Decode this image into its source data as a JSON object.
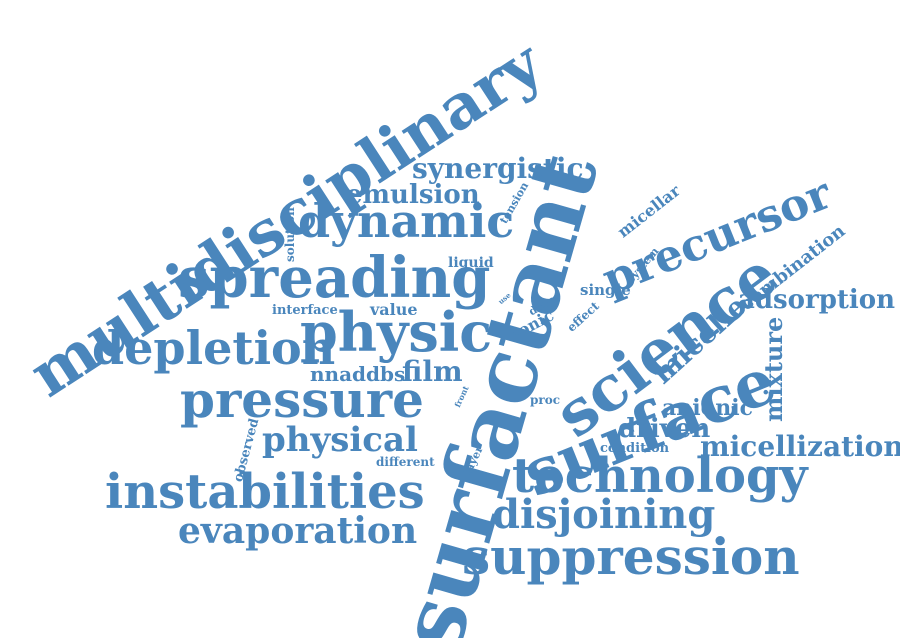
{
  "cloud": {
    "color": "#4a86bc",
    "background": "#ffffff",
    "words": [
      "multidisciplinary",
      "surfactant",
      "science",
      "surface",
      "spreading",
      "dynamic",
      "physic",
      "depletion",
      "pressure",
      "instabilities",
      "technology",
      "suppression",
      "disjoining",
      "evaporation",
      "precursor",
      "physical",
      "micellization",
      "adsorption",
      "synergistic",
      "emulsion",
      "micelle",
      "mixture",
      "anionic",
      "driven",
      "film",
      "nnaddbs",
      "combination",
      "micellar",
      "value",
      "interface",
      "liquid",
      "solution",
      "tension",
      "ionic",
      "single",
      "system",
      "drop",
      "effect",
      "proc",
      "front",
      "layer",
      "condition",
      "different",
      "observed",
      "use"
    ]
  }
}
